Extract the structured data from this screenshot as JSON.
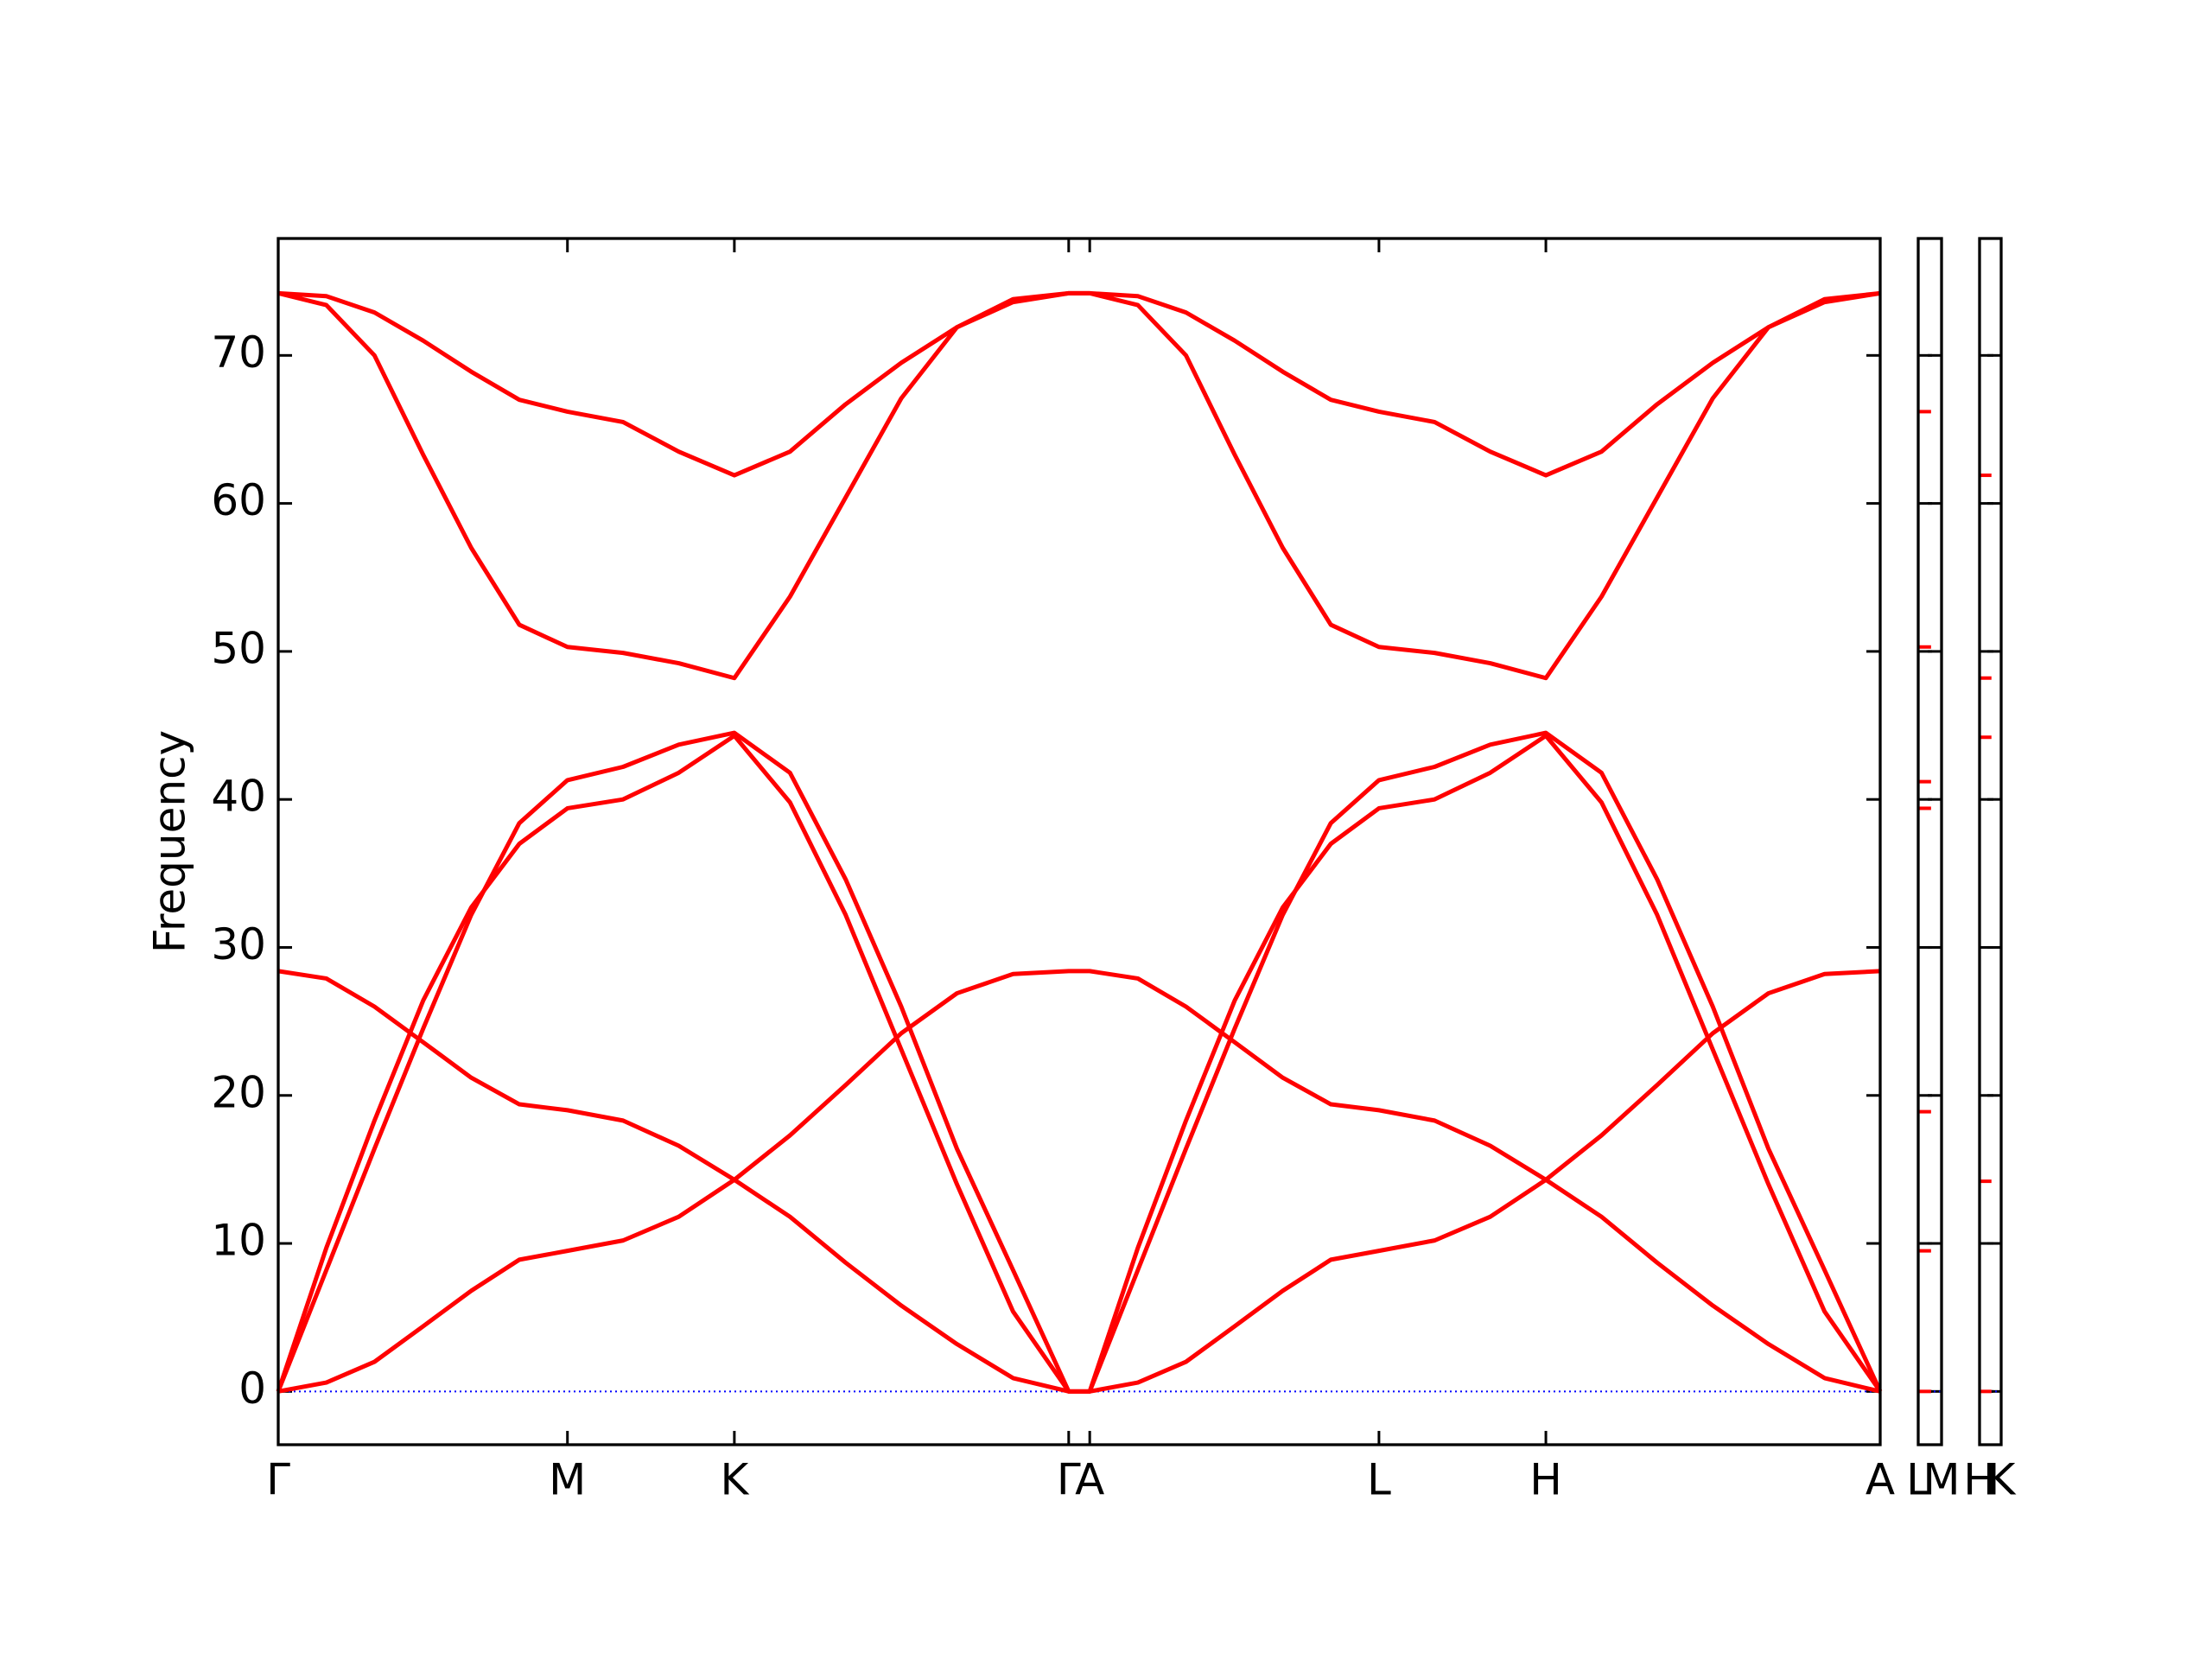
{
  "chart_data": [
    {
      "type": "line",
      "ylabel": "Frequency",
      "x": [
        0,
        0.096,
        0.192,
        0.289,
        0.385,
        0.481,
        0.577,
        0.688,
        0.799,
        0.91,
        1.021,
        1.132,
        1.243,
        1.354,
        1.466,
        1.577,
        1.619,
        1.715,
        1.811,
        1.908,
        2.004,
        2.1,
        2.196,
        2.307,
        2.418,
        2.529,
        2.64,
        2.751,
        2.862,
        2.973,
        3.085,
        3.196
      ],
      "xlim": [
        0,
        3.196
      ],
      "xticks": [
        {
          "value": 0,
          "label": "Γ"
        },
        {
          "value": 0.577,
          "label": "M"
        },
        {
          "value": 0.91,
          "label": "K"
        },
        {
          "value": 1.577,
          "label": "Γ"
        },
        {
          "value": 1.619,
          "label": "A"
        },
        {
          "value": 2.196,
          "label": "L"
        },
        {
          "value": 2.529,
          "label": "H"
        },
        {
          "value": 3.196,
          "label": "A"
        }
      ],
      "ylim": [
        -3.6,
        77.9
      ],
      "yticks": [
        0,
        10,
        20,
        30,
        40,
        50,
        60,
        70
      ],
      "zero_line": {
        "value": 0,
        "color": "#0000ff"
      },
      "series": [
        {
          "color": "#ff0000",
          "values": [
            74.2,
            74.0,
            72.9,
            71.0,
            68.9,
            67.0,
            66.2,
            65.5,
            63.5,
            61.9,
            63.5,
            66.7,
            69.5,
            71.9,
            73.6,
            74.2,
            74.2,
            74.0,
            72.9,
            71.0,
            68.9,
            67.0,
            66.2,
            65.5,
            63.5,
            61.9,
            63.5,
            66.7,
            69.5,
            71.9,
            73.6,
            74.2
          ]
        },
        {
          "color": "#ff0000",
          "values": [
            74.2,
            73.4,
            70.0,
            63.3,
            57.0,
            51.8,
            50.3,
            49.9,
            49.2,
            48.2,
            53.7,
            60.4,
            67.1,
            71.9,
            73.8,
            74.2,
            74.2,
            73.4,
            70.0,
            63.3,
            57.0,
            51.8,
            50.3,
            49.9,
            49.2,
            48.2,
            53.7,
            60.4,
            67.1,
            71.9,
            73.8,
            74.2
          ]
        },
        {
          "color": "#ff0000",
          "values": [
            0,
            8.2,
            16.4,
            24.5,
            32.2,
            38.4,
            41.3,
            42.2,
            43.7,
            44.5,
            41.8,
            34.6,
            26.0,
            16.4,
            8.2,
            0,
            0,
            8.2,
            16.4,
            24.5,
            32.2,
            38.4,
            41.3,
            42.2,
            43.7,
            44.5,
            41.8,
            34.6,
            26.0,
            16.4,
            8.2,
            0
          ]
        },
        {
          "color": "#ff0000",
          "values": [
            0,
            9.7,
            18.3,
            26.4,
            32.7,
            37.0,
            39.4,
            40.0,
            41.8,
            44.3,
            39.8,
            32.2,
            23.1,
            14.0,
            5.4,
            0,
            0,
            9.7,
            18.3,
            26.4,
            32.7,
            37.0,
            39.4,
            40.0,
            41.8,
            44.3,
            39.8,
            32.2,
            23.1,
            14.0,
            5.4,
            0
          ]
        },
        {
          "color": "#ff0000",
          "values": [
            28.4,
            27.9,
            26.0,
            23.6,
            21.2,
            19.4,
            19.0,
            18.3,
            16.6,
            14.3,
            11.8,
            8.7,
            5.8,
            3.2,
            0.9,
            0,
            0,
            0.6,
            2.0,
            4.4,
            6.8,
            8.9,
            9.5,
            10.2,
            11.8,
            14.3,
            17.3,
            20.7,
            24.2,
            26.9,
            28.2,
            28.4
          ]
        },
        {
          "color": "#ff0000",
          "values": [
            0,
            0.6,
            2.0,
            4.4,
            6.8,
            8.9,
            9.5,
            10.2,
            11.8,
            14.3,
            17.3,
            20.7,
            24.2,
            26.9,
            28.2,
            28.4,
            28.4,
            27.9,
            26.0,
            23.6,
            21.2,
            19.4,
            19.0,
            18.3,
            16.6,
            14.3,
            11.8,
            8.7,
            5.8,
            3.2,
            0.9,
            0
          ]
        }
      ]
    },
    {
      "type": "levels",
      "xlim": [
        0,
        1
      ],
      "xticks": [
        {
          "value": 0,
          "label": "L"
        },
        {
          "value": 1,
          "label": "M"
        }
      ],
      "ylim": [
        -3.6,
        77.9
      ],
      "yticks": [
        0,
        10,
        20,
        30,
        40,
        50,
        60,
        70
      ],
      "color": "#ff0000",
      "values": [
        66.2,
        50.3,
        41.2,
        39.4,
        18.9,
        9.5,
        0
      ]
    },
    {
      "type": "levels",
      "xlim": [
        0,
        1
      ],
      "xticks": [
        {
          "value": 0,
          "label": "H"
        },
        {
          "value": 1,
          "label": "K"
        }
      ],
      "ylim": [
        -3.6,
        77.9
      ],
      "yticks": [
        0,
        10,
        20,
        30,
        40,
        50,
        60,
        70
      ],
      "color": "#ff0000",
      "values": [
        61.9,
        48.2,
        44.2,
        14.2,
        0
      ]
    }
  ]
}
